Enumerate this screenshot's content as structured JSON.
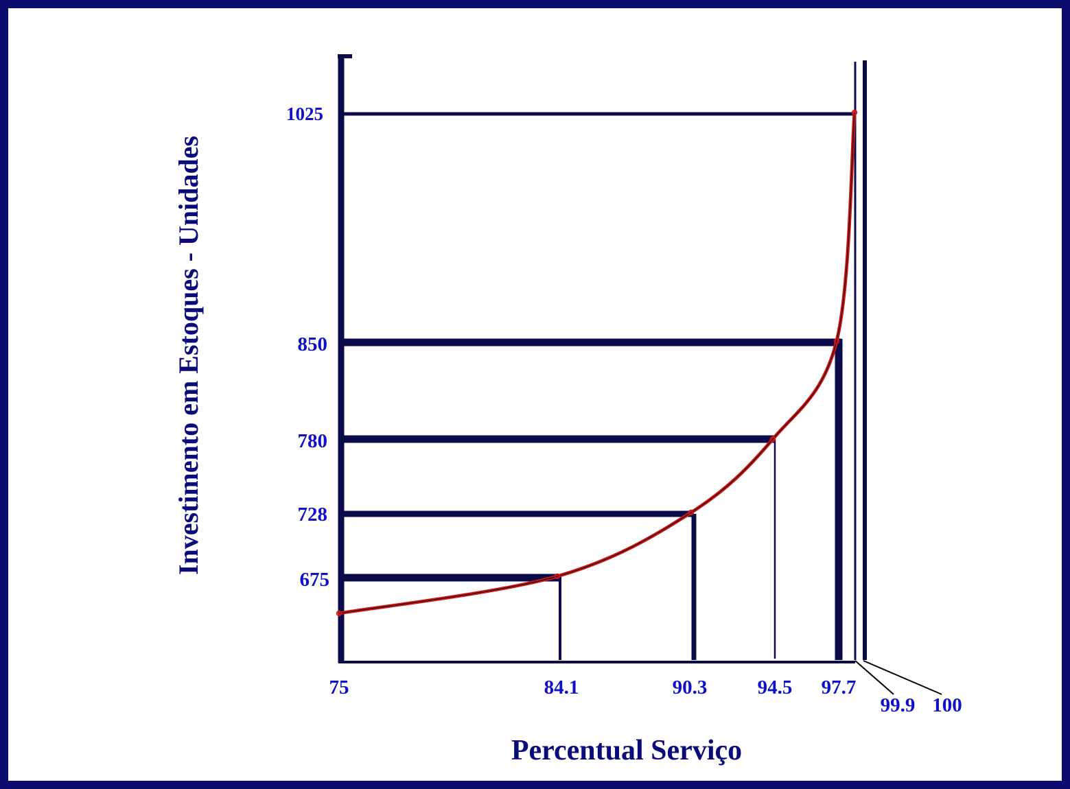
{
  "chart_data": {
    "type": "line",
    "xlabel": "Percentual Serviço",
    "ylabel": "Investimento em Estoques - Unidades",
    "x_tick_labels": [
      "75",
      "84.1",
      "90.3",
      "94.5",
      "97.7",
      "99.9",
      "100"
    ],
    "y_tick_labels": [
      "1025",
      "850",
      "780",
      "728",
      "675"
    ],
    "series": [
      {
        "values": [
          {
            "x": 75,
            "y": 650
          },
          {
            "x": 84.1,
            "y": 675
          },
          {
            "x": 90.3,
            "y": 728
          },
          {
            "x": 94.5,
            "y": 780
          },
          {
            "x": 97.7,
            "y": 850
          },
          {
            "x": 99.9,
            "y": 1025
          }
        ]
      }
    ],
    "grid": false,
    "colors": {
      "frame": "#0b0b6e",
      "axis": "#0b0b4a",
      "curve": "#d01818",
      "labels": "#1010c8"
    }
  }
}
